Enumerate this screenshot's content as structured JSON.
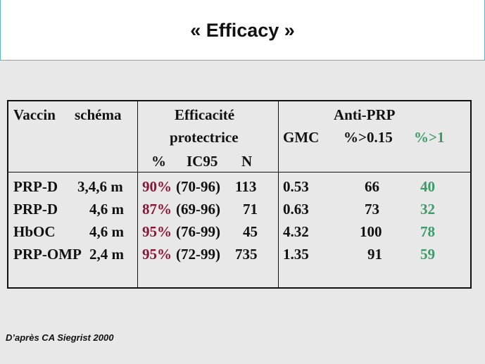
{
  "slide": {
    "title": "« Efficacy »",
    "source": "D’après CA Siegrist 2000"
  },
  "table": {
    "header": {
      "vaccin": "Vaccin",
      "schema": "schéma",
      "efficacite_line1": "Efficacité",
      "efficacite_line2": "protectrice",
      "pct": "%",
      "ic95": "IC95",
      "n": "N",
      "anti_prp": "Anti-PRP",
      "gmc": "GMC",
      "pct_015": "%>0.15",
      "pct_1": "%>1"
    },
    "rows": [
      {
        "vaccine": "PRP-D",
        "schedule": "3,4,6 m",
        "efficacy": "90%",
        "ci": "(70-96)",
        "n": "113",
        "gmc": "0.53",
        "pct015": "66",
        "pct1": "40"
      },
      {
        "vaccine": "PRP-D",
        "schedule": "4,6 m",
        "efficacy": "87%",
        "ci": "(69-96)",
        "n": "71",
        "gmc": "0.63",
        "pct015": "73",
        "pct1": "32"
      },
      {
        "vaccine": "HbOC",
        "schedule": "4,6 m",
        "efficacy": "95%",
        "ci": "(76-99)",
        "n": "45",
        "gmc": "4.32",
        "pct015": "100",
        "pct1": "78"
      },
      {
        "vaccine": "PRP-OMP",
        "schedule": "2,4 m",
        "efficacy": "95%",
        "ci": "(72-99)",
        "n": "735",
        "gmc": "1.35",
        "pct015": "91",
        "pct1": "59"
      }
    ],
    "colors": {
      "efficacy": "#8b1538",
      "pct1": "#3f9a6a"
    }
  }
}
